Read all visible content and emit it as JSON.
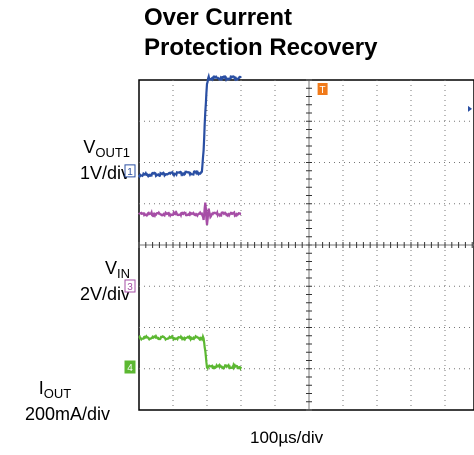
{
  "chart_data": {
    "type": "line",
    "title_line1": "Over Current",
    "title_line2": "Protection Recovery",
    "xlabel": "100µs/div",
    "x_divisions": 10,
    "y_divisions": 8,
    "grid": true,
    "channels": [
      {
        "marker": "1",
        "name_main": "V",
        "name_sub": "OUT1",
        "scale": "1V/div",
        "color": "#2a4fa3"
      },
      {
        "marker": "3",
        "name_main": "V",
        "name_sub": "IN",
        "scale": "2V/div",
        "color": "#a64ea6"
      },
      {
        "marker": "4",
        "name_main": "I",
        "name_sub": "OUT",
        "scale": "200mA/div",
        "color": "#5cb832"
      }
    ],
    "trigger_marker": "T",
    "series": [
      {
        "name": "VOUT1",
        "color": "#2a4fa3",
        "x": [
          0,
          1.8,
          1.85,
          1.9,
          1.95,
          2.0,
          2.05,
          2.1,
          3.0
        ],
        "y": [
          5.7,
          5.75,
          5.8,
          6.3,
          7.2,
          7.9,
          8.05,
          8.05,
          8.05
        ]
      },
      {
        "name": "VIN",
        "color": "#a64ea6",
        "x": [
          0,
          1.85,
          1.9,
          1.95,
          2.0,
          2.05,
          2.1,
          2.2,
          3.0
        ],
        "y": [
          4.75,
          4.75,
          4.6,
          5.0,
          4.5,
          4.9,
          4.7,
          4.75,
          4.75
        ]
      },
      {
        "name": "IOUT",
        "color": "#5cb832",
        "x": [
          0,
          1.9,
          1.95,
          2.0,
          3.0
        ],
        "y": [
          1.75,
          1.75,
          1.45,
          1.05,
          1.05
        ]
      }
    ]
  }
}
